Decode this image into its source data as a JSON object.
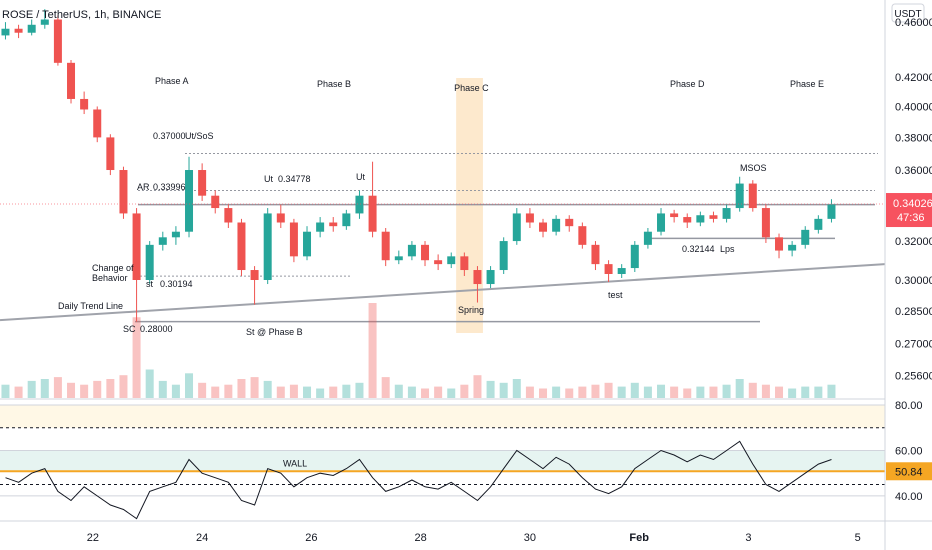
{
  "chart_data": {
    "type": "candlestick",
    "title": "ROSE / TetherUS, 1h, BINANCE",
    "currency": "USDT",
    "log_scale": true,
    "xlim": [
      20.3,
      36.5
    ],
    "xticks": [
      22,
      24,
      26,
      28,
      30,
      {
        "value": 32,
        "label": "Feb"
      },
      {
        "value": 34,
        "label": "3"
      },
      {
        "value": 36,
        "label": "5"
      }
    ],
    "ylim": [
      0.2467,
      0.4772
    ],
    "yticks": [
      {
        "value": 0.46,
        "label": "0.46000"
      },
      {
        "value": 0.42,
        "label": "0.42000"
      },
      {
        "value": 0.4,
        "label": "0.40000"
      },
      {
        "value": 0.38,
        "label": "0.38000"
      },
      {
        "value": 0.36,
        "label": "0.36000"
      },
      {
        "value": 0.32,
        "label": "0.32000"
      },
      {
        "value": 0.3,
        "label": "0.30000"
      },
      {
        "value": 0.285,
        "label": "0.28500"
      },
      {
        "value": 0.27,
        "label": "0.27000"
      },
      {
        "value": 0.256,
        "label": "0.25600"
      }
    ],
    "up_color": "#26a69a",
    "down_color": "#ef5350",
    "x": [
      20.4,
      20.64,
      20.88,
      21.12,
      21.36,
      21.6,
      21.84,
      22.08,
      22.32,
      22.56,
      22.8,
      23.04,
      23.28,
      23.52,
      23.76,
      24,
      24.24,
      24.48,
      24.72,
      24.96,
      25.2,
      25.44,
      25.68,
      25.92,
      26.16,
      26.4,
      26.64,
      26.88,
      27.12,
      27.36,
      27.6,
      27.84,
      28.08,
      28.32,
      28.56,
      28.8,
      29.04,
      29.28,
      29.52,
      29.76,
      30,
      30.24,
      30.48,
      30.72,
      30.96,
      31.2,
      31.44,
      31.68,
      31.92,
      32.16,
      32.4,
      32.64,
      32.88,
      33.12,
      33.36,
      33.6,
      33.84,
      34.08,
      34.32,
      34.56,
      34.8,
      35.04,
      35.28,
      35.52
    ],
    "open": [
      0.45,
      0.455,
      0.452,
      0.458,
      0.462,
      0.43,
      0.405,
      0.398,
      0.38,
      0.36,
      0.335,
      0.3,
      0.318,
      0.322,
      0.325,
      0.36,
      0.345,
      0.338,
      0.33,
      0.305,
      0.3,
      0.335,
      0.33,
      0.312,
      0.325,
      0.33,
      0.328,
      0.335,
      0.345,
      0.325,
      0.31,
      0.312,
      0.318,
      0.31,
      0.308,
      0.312,
      0.305,
      0.298,
      0.305,
      0.32,
      0.335,
      0.33,
      0.325,
      0.332,
      0.328,
      0.318,
      0.308,
      0.303,
      0.306,
      0.318,
      0.325,
      0.335,
      0.333,
      0.33,
      0.334,
      0.332,
      0.338,
      0.352,
      0.338,
      0.322,
      0.315,
      0.318,
      0.326,
      0.332
    ],
    "high": [
      0.46,
      0.458,
      0.462,
      0.47,
      0.465,
      0.432,
      0.41,
      0.4,
      0.382,
      0.362,
      0.338,
      0.32,
      0.325,
      0.328,
      0.368,
      0.364,
      0.348,
      0.34,
      0.332,
      0.307,
      0.338,
      0.34,
      0.332,
      0.328,
      0.333,
      0.333,
      0.337,
      0.348,
      0.365,
      0.327,
      0.315,
      0.32,
      0.32,
      0.313,
      0.314,
      0.314,
      0.307,
      0.307,
      0.322,
      0.338,
      0.338,
      0.332,
      0.334,
      0.334,
      0.33,
      0.32,
      0.31,
      0.308,
      0.32,
      0.327,
      0.338,
      0.337,
      0.335,
      0.336,
      0.336,
      0.34,
      0.356,
      0.354,
      0.34,
      0.324,
      0.32,
      0.328,
      0.334,
      0.343
    ],
    "low": [
      0.447,
      0.448,
      0.45,
      0.455,
      0.428,
      0.402,
      0.395,
      0.377,
      0.357,
      0.332,
      0.28,
      0.298,
      0.315,
      0.318,
      0.322,
      0.342,
      0.335,
      0.327,
      0.302,
      0.288,
      0.298,
      0.327,
      0.309,
      0.31,
      0.322,
      0.325,
      0.326,
      0.332,
      0.322,
      0.307,
      0.308,
      0.31,
      0.307,
      0.305,
      0.306,
      0.302,
      0.289,
      0.296,
      0.303,
      0.318,
      0.327,
      0.322,
      0.323,
      0.325,
      0.316,
      0.305,
      0.299,
      0.301,
      0.304,
      0.316,
      0.323,
      0.33,
      0.327,
      0.328,
      0.33,
      0.33,
      0.336,
      0.336,
      0.319,
      0.311,
      0.312,
      0.316,
      0.324,
      0.33
    ],
    "close": [
      0.455,
      0.452,
      0.458,
      0.462,
      0.43,
      0.405,
      0.398,
      0.38,
      0.36,
      0.335,
      0.3,
      0.318,
      0.322,
      0.325,
      0.36,
      0.345,
      0.338,
      0.33,
      0.305,
      0.3,
      0.335,
      0.33,
      0.312,
      0.325,
      0.33,
      0.328,
      0.335,
      0.345,
      0.325,
      0.31,
      0.312,
      0.318,
      0.31,
      0.308,
      0.312,
      0.305,
      0.298,
      0.305,
      0.32,
      0.335,
      0.33,
      0.325,
      0.332,
      0.328,
      0.318,
      0.308,
      0.303,
      0.306,
      0.318,
      0.325,
      0.335,
      0.333,
      0.33,
      0.334,
      0.332,
      0.338,
      0.352,
      0.338,
      0.322,
      0.315,
      0.318,
      0.326,
      0.332,
      0.34
    ],
    "volume": [
      14,
      12,
      18,
      20,
      22,
      16,
      14,
      18,
      20,
      24,
      85,
      30,
      18,
      14,
      26,
      16,
      12,
      14,
      20,
      22,
      18,
      12,
      14,
      12,
      10,
      12,
      14,
      16,
      100,
      22,
      14,
      12,
      10,
      12,
      10,
      14,
      24,
      18,
      16,
      20,
      12,
      10,
      12,
      10,
      12,
      14,
      16,
      12,
      16,
      12,
      14,
      12,
      10,
      12,
      12,
      14,
      20,
      16,
      14,
      12,
      10,
      12,
      12,
      14
    ],
    "last_price": 0.34026,
    "countdown": "47:36",
    "levels": [
      0.37,
      0.348,
      0.33996,
      0.30194,
      0.28,
      0.32144
    ],
    "trend_line": {
      "name": "Daily Trend Line",
      "y": [
        0.2807,
        0.308
      ]
    },
    "highlight": {
      "name": "Phase C",
      "x": [
        28.65,
        29.14
      ]
    },
    "annotations": [
      "Phase A",
      "Phase B",
      "Phase D",
      "Phase E",
      "0.37000",
      "Ut/SoS",
      "Ut",
      "0.34778",
      "Ut",
      "MSOS",
      "AR",
      "0.33996",
      "0.32144",
      "Lps",
      "Change of",
      "Behavior",
      "st",
      "0.30194",
      "test",
      "Spring",
      "SC",
      "0.28000",
      "St @ Phase B"
    ],
    "rsi": {
      "values": [
        48,
        46,
        50,
        52,
        42,
        38,
        44,
        40,
        36,
        34,
        30,
        42,
        44,
        46,
        56,
        50,
        48,
        46,
        38,
        36,
        52,
        50,
        44,
        48,
        50,
        49,
        52,
        56,
        48,
        42,
        44,
        47,
        44,
        43,
        46,
        42,
        38,
        44,
        52,
        60,
        56,
        52,
        57,
        54,
        48,
        43,
        41,
        44,
        52,
        56,
        60,
        58,
        55,
        58,
        56,
        60,
        64,
        54,
        45,
        42,
        46,
        50,
        54,
        56
      ],
      "ylim": [
        29.4,
        82.2
      ],
      "yticks": [
        {
          "value": 80,
          "label": "80.00"
        },
        {
          "value": 60,
          "label": "60.00"
        },
        {
          "value": 40,
          "label": "40.00"
        }
      ],
      "levels": [
        70,
        45
      ],
      "wall": 50.84,
      "wall_name": "WALL"
    }
  }
}
